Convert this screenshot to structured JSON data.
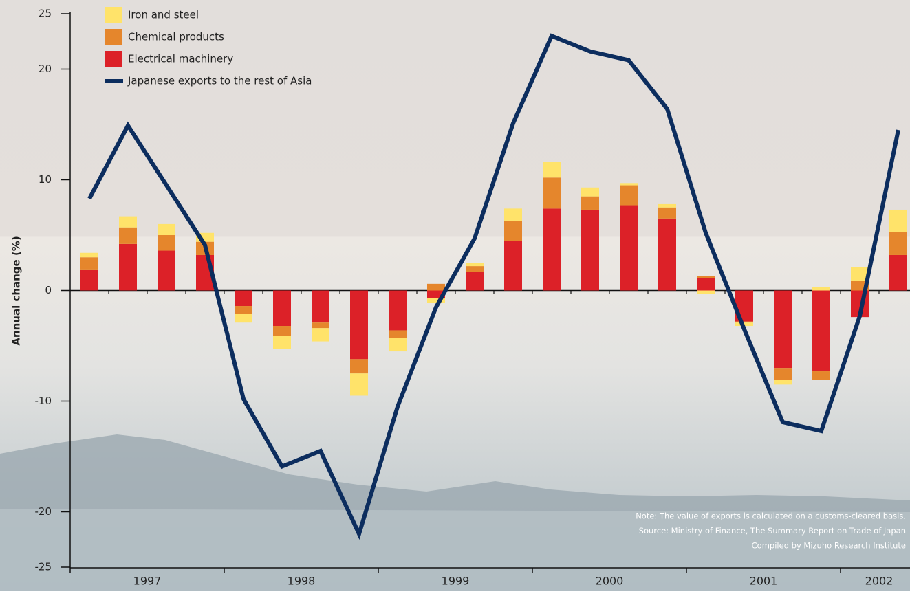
{
  "chart_data": {
    "type": "bar",
    "y_label": "Annual change (%)",
    "groups": [
      "1997",
      "1998",
      "1999",
      "2000",
      "2001",
      "2002"
    ],
    "categories": [
      null,
      null,
      null,
      null,
      null,
      null,
      null,
      null,
      null,
      null,
      null,
      null,
      null,
      null,
      null,
      null,
      null,
      null,
      null,
      null,
      null,
      null
    ],
    "series": [
      {
        "name": "Electrical machinery",
        "color": "#dc2128",
        "values": [
          1.9,
          4.2,
          3.6,
          3.2,
          -1.4,
          -3.2,
          -2.9,
          -6.2,
          -3.6,
          -0.7,
          1.7,
          4.5,
          7.4,
          7.3,
          7.7,
          6.5,
          1.1,
          -2.8,
          -7.0,
          -7.3,
          -2.4,
          3.2
        ]
      },
      {
        "name": "Chemical products",
        "color": "#e5862c",
        "values": [
          1.1,
          1.5,
          1.4,
          1.2,
          -0.7,
          -0.9,
          -0.5,
          -1.3,
          -0.7,
          0.6,
          0.5,
          1.8,
          2.8,
          1.2,
          1.8,
          1.0,
          0.2,
          -0.1,
          -1.1,
          -0.8,
          0.9,
          2.1
        ]
      },
      {
        "name": "Iron and steel",
        "color": "#ffe36a",
        "values": [
          0.4,
          1.0,
          1.0,
          0.8,
          -0.8,
          -1.2,
          -1.2,
          -2.0,
          -1.2,
          -0.4,
          0.3,
          1.1,
          1.4,
          0.8,
          0.2,
          0.3,
          -0.3,
          -0.3,
          -0.4,
          0.3,
          1.2,
          2.0
        ]
      },
      {
        "name": "Japanese exports to the rest of Asia",
        "type": "line",
        "color": "#0c2d5e",
        "values": [
          8.3,
          14.9,
          9.5,
          4.1,
          -9.8,
          -15.9,
          -14.5,
          -22.0,
          -10.5,
          -1.5,
          4.7,
          15.1,
          23.0,
          21.6,
          20.8,
          16.4,
          5.2,
          -3.5,
          -11.9,
          -12.7,
          -2.3,
          14.5
        ]
      }
    ],
    "legend_order": [
      2,
      1,
      0,
      3
    ],
    "ylim": [
      -25,
      25
    ],
    "yticks": [
      -25,
      -20,
      -10,
      0,
      10,
      20,
      25
    ],
    "notes": [
      "Note: The value of exports is calculated on a customs-cleared basis.",
      "Source: Ministry of Finance, The Summary Report on Trade of Japan",
      "Compiled by Mizuho Research Institute"
    ]
  }
}
